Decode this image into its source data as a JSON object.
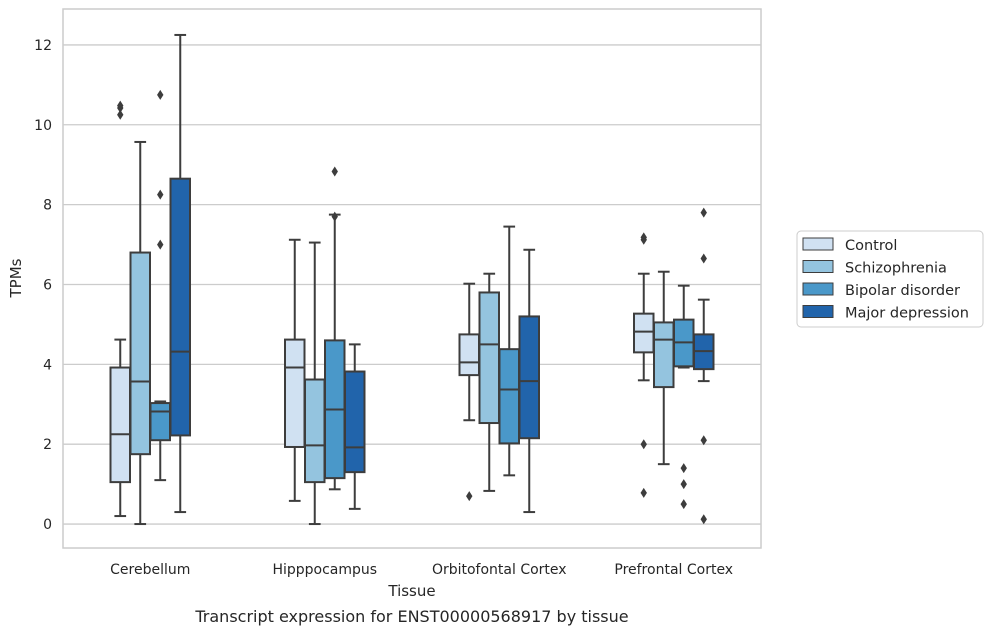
{
  "chart_data": {
    "type": "box",
    "caption": "Transcript expression for ENST00000568917 by tissue",
    "xlabel": "Tissue",
    "ylabel": "TPMs",
    "ylim": [
      -0.6,
      12.9
    ],
    "yticks": [
      "0",
      "2",
      "4",
      "6",
      "8",
      "10",
      "12"
    ],
    "grid": "horizontal",
    "legend_position": "right",
    "categories": [
      "Cerebellum",
      "Hipppocampus",
      "Orbitofontal Cortex",
      "Prefrontal Cortex"
    ],
    "series": [
      {
        "name": "Control",
        "color": "#d0e1f2",
        "boxes": [
          {
            "whislo": 0.2,
            "q1": 1.05,
            "med": 2.25,
            "q3": 3.92,
            "whishi": 4.62,
            "fliers": [
              10.25,
              10.42,
              10.48
            ]
          },
          {
            "whislo": 0.58,
            "q1": 1.93,
            "med": 3.92,
            "q3": 4.62,
            "whishi": 7.12,
            "fliers": []
          },
          {
            "whislo": 2.6,
            "q1": 3.73,
            "med": 4.05,
            "q3": 4.75,
            "whishi": 6.02,
            "fliers": [
              0.7
            ]
          },
          {
            "whislo": 3.6,
            "q1": 4.3,
            "med": 4.82,
            "q3": 5.27,
            "whishi": 6.27,
            "fliers": [
              0.78,
              2.0,
              7.12,
              7.18
            ]
          }
        ]
      },
      {
        "name": "Schizophrenia",
        "color": "#94c4df",
        "boxes": [
          {
            "whislo": 0.0,
            "q1": 1.75,
            "med": 3.57,
            "q3": 6.8,
            "whishi": 9.57,
            "fliers": []
          },
          {
            "whislo": 0.0,
            "q1": 1.05,
            "med": 1.97,
            "q3": 3.62,
            "whishi": 7.05,
            "fliers": []
          },
          {
            "whislo": 0.83,
            "q1": 2.53,
            "med": 4.5,
            "q3": 5.8,
            "whishi": 6.27,
            "fliers": []
          },
          {
            "whislo": 1.5,
            "q1": 3.43,
            "med": 4.62,
            "q3": 5.05,
            "whishi": 6.32,
            "fliers": []
          }
        ]
      },
      {
        "name": "Bipolar disorder",
        "color": "#4a98c9",
        "boxes": [
          {
            "whislo": 1.1,
            "q1": 2.1,
            "med": 2.82,
            "q3": 3.03,
            "whishi": 3.07,
            "fliers": [
              7.0,
              8.25,
              10.75
            ]
          },
          {
            "whislo": 0.87,
            "q1": 1.15,
            "med": 2.87,
            "q3": 4.6,
            "whishi": 7.75,
            "fliers": [
              7.7,
              8.83
            ]
          },
          {
            "whislo": 1.22,
            "q1": 2.02,
            "med": 3.37,
            "q3": 4.38,
            "whishi": 7.45,
            "fliers": []
          },
          {
            "whislo": 3.92,
            "q1": 3.95,
            "med": 4.55,
            "q3": 5.12,
            "whishi": 5.97,
            "fliers": [
              0.5,
              1.0,
              1.4
            ]
          }
        ]
      },
      {
        "name": "Major depression",
        "color": "#2164ab",
        "boxes": [
          {
            "whislo": 0.3,
            "q1": 2.22,
            "med": 4.32,
            "q3": 8.65,
            "whishi": 12.25,
            "fliers": []
          },
          {
            "whislo": 0.38,
            "q1": 1.3,
            "med": 1.92,
            "q3": 3.82,
            "whishi": 4.5,
            "fliers": []
          },
          {
            "whislo": 0.3,
            "q1": 2.15,
            "med": 3.58,
            "q3": 5.2,
            "whishi": 6.87,
            "fliers": []
          },
          {
            "whislo": 3.58,
            "q1": 3.88,
            "med": 4.33,
            "q3": 4.75,
            "whishi": 5.62,
            "fliers": [
              0.12,
              2.1,
              6.65,
              7.8
            ]
          }
        ]
      }
    ]
  }
}
